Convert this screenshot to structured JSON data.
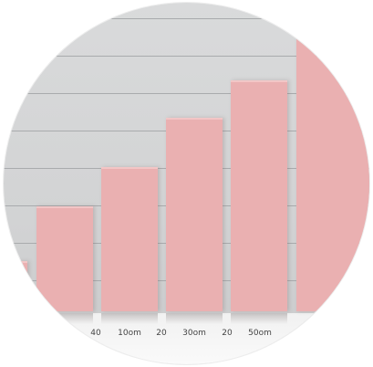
{
  "tick_labels": [
    "40",
    "10om",
    "20",
    "30om",
    "20",
    "50om"
  ],
  "colors": {
    "bar": "#eab0b1",
    "background": "#d5d6d7",
    "gridline": "#a9abad",
    "floor": "#f5f5f5"
  }
}
